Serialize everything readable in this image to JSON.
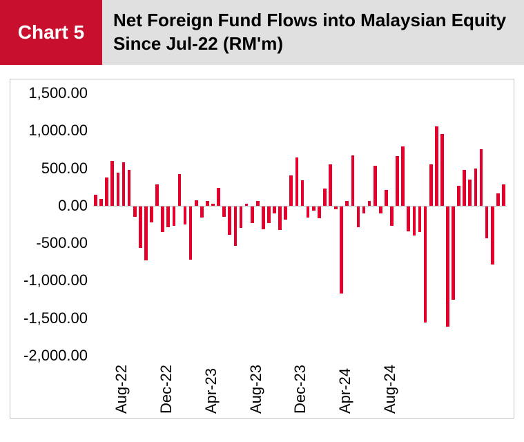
{
  "header": {
    "label": "Chart 5",
    "title": "Net Foreign Fund Flows into Malaysian Equity Since Jul-22 (RM'm)"
  },
  "chart": {
    "type": "bar",
    "bar_color": "#e4002b",
    "background_color": "#ffffff",
    "border_color": "#c0c0c0",
    "grid_color": "#c0c0c0",
    "label_fontsize": 22,
    "ylim": [
      -2000,
      1500
    ],
    "yticks": [
      {
        "v": 1500,
        "label": "1,500.00"
      },
      {
        "v": 1000,
        "label": "1,000.00"
      },
      {
        "v": 500,
        "label": "500.00"
      },
      {
        "v": 0,
        "label": "0.00"
      },
      {
        "v": -500,
        "label": "-500.00"
      },
      {
        "v": -1000,
        "label": "-1,000.00"
      },
      {
        "v": -1500,
        "label": "-1,500.00"
      },
      {
        "v": -2000,
        "label": "-2,000.00"
      }
    ],
    "xticks": [
      {
        "index": 2,
        "label": "Aug-22"
      },
      {
        "index": 10,
        "label": "Dec-22"
      },
      {
        "index": 18,
        "label": "Apr-23"
      },
      {
        "index": 26,
        "label": "Aug-23"
      },
      {
        "index": 34,
        "label": "Dec-23"
      },
      {
        "index": 42,
        "label": "Apr-24"
      },
      {
        "index": 50,
        "label": "Aug-24"
      }
    ],
    "values": [
      150,
      90,
      380,
      600,
      440,
      580,
      480,
      -150,
      -560,
      -730,
      -220,
      280,
      -350,
      -290,
      -270,
      420,
      -250,
      -720,
      70,
      -160,
      60,
      30,
      240,
      -150,
      -390,
      -540,
      -300,
      30,
      -230,
      60,
      -310,
      -230,
      -100,
      -320,
      -190,
      400,
      640,
      340,
      -160,
      -70,
      -170,
      230,
      550,
      -50,
      -1170,
      60,
      670,
      -290,
      -100,
      60,
      530,
      -100,
      210,
      -270,
      660,
      790,
      -340,
      -400,
      -350,
      -1560,
      550,
      1060,
      960,
      -1610,
      -1250,
      270,
      480,
      350,
      500,
      750,
      -430,
      -780,
      160,
      280
    ]
  }
}
